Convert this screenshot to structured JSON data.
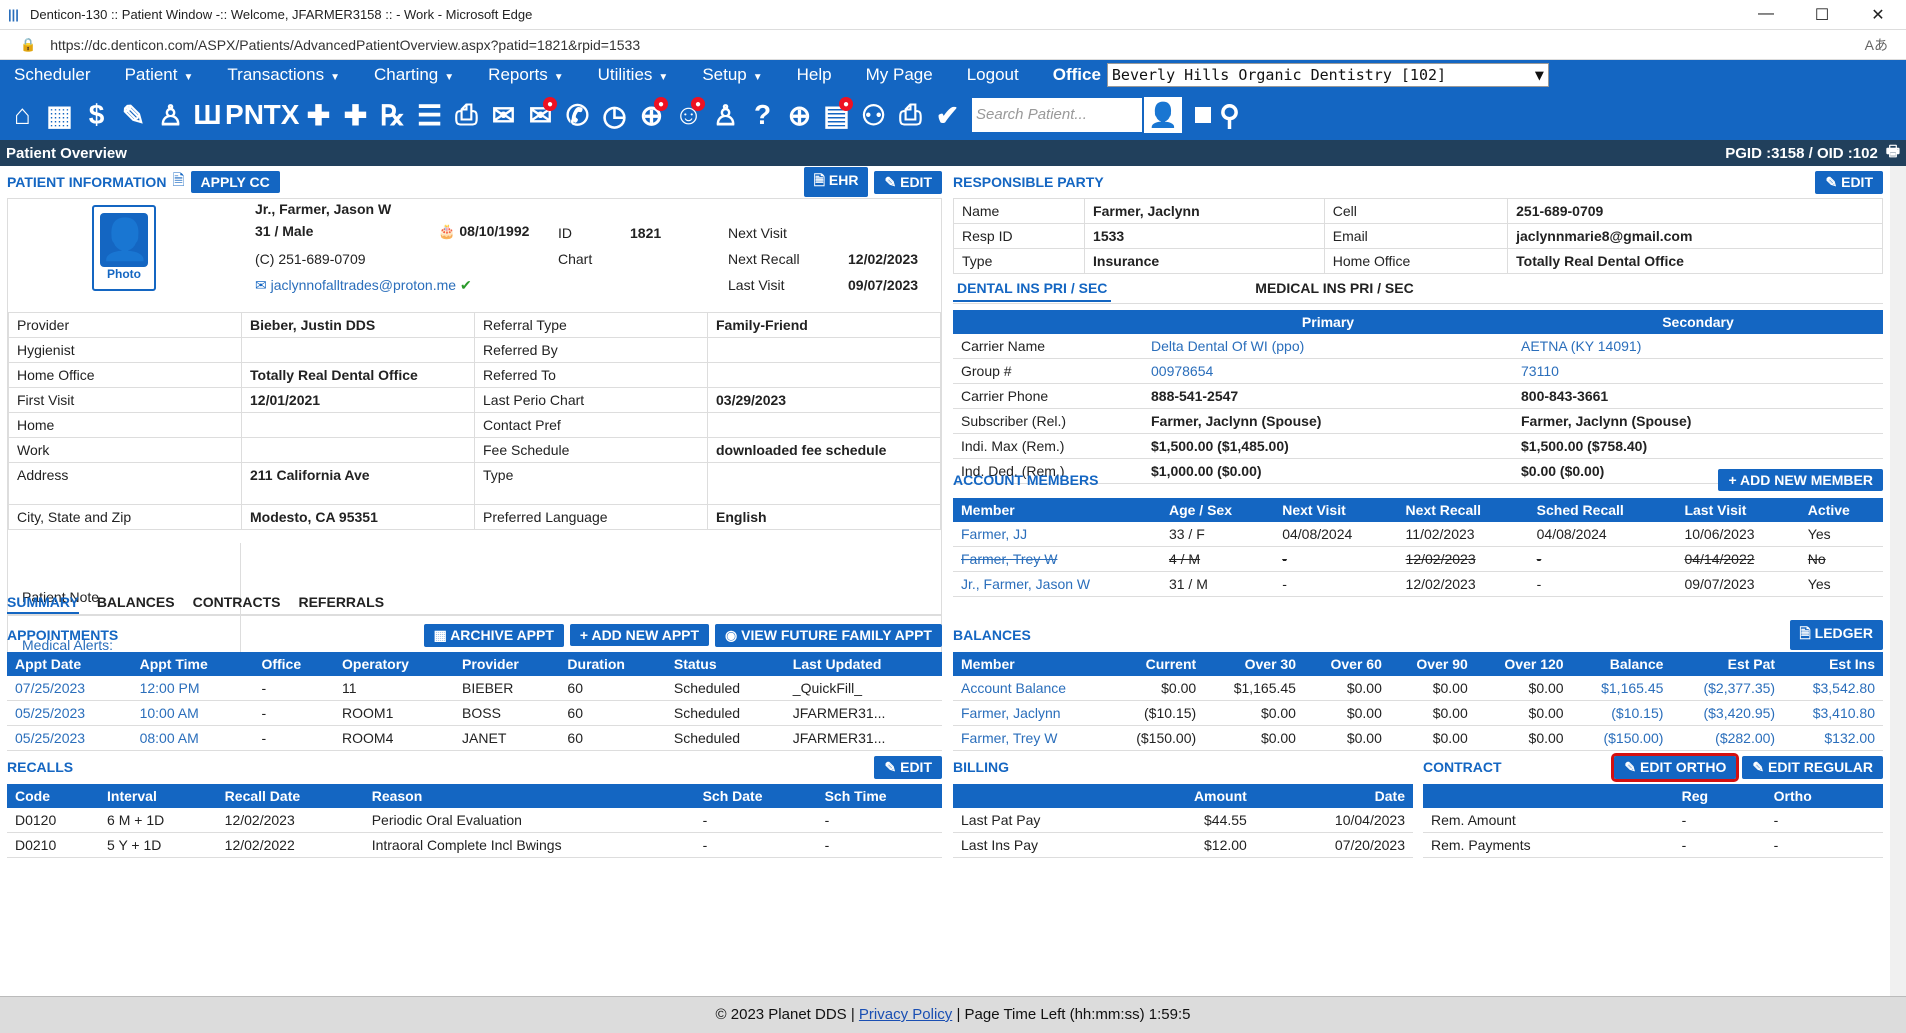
{
  "window": {
    "title": "Denticon-130 :: Patient Window -:: Welcome, JFARMER3158 :: - Work - Microsoft Edge",
    "url": "https://dc.denticon.com/ASPX/Patients/AdvancedPatientOverview.aspx?patid=1821&rpid=1533"
  },
  "menu": {
    "items": [
      "Scheduler",
      "Patient",
      "Transactions",
      "Charting",
      "Reports",
      "Utilities",
      "Setup",
      "Help",
      "My Page",
      "Logout"
    ],
    "office_label": "Office",
    "office_value": "Beverly Hills Organic Dentistry [102]"
  },
  "iconbar": {
    "search_placeholder": "Search Patient..."
  },
  "overview": {
    "title": "Patient Overview",
    "ids": "PGID :3158 / OID :102"
  },
  "patient": {
    "section": "PATIENT INFORMATION",
    "apply_cc": "APPLY CC",
    "ehr": "EHR",
    "edit": "EDIT",
    "photo": "Photo",
    "name": "Jr., Farmer, Jason W",
    "agesex": "31 / Male",
    "dob": "08/10/1992",
    "id_label": "ID",
    "id": "1821",
    "chart_label": "Chart",
    "phone": "(C) 251-689-0709",
    "email": "jaclynnofalltrades@proton.me",
    "next_visit_label": "Next Visit",
    "next_recall_label": "Next Recall",
    "next_recall": "12/02/2023",
    "last_visit_label": "Last Visit",
    "last_visit": "09/07/2023",
    "rows": [
      [
        "Provider",
        "Bieber, Justin DDS",
        "Referral Type",
        "Family-Friend"
      ],
      [
        "Hygienist",
        "",
        "Referred By",
        ""
      ],
      [
        "Home Office",
        "Totally Real Dental Office",
        "Referred To",
        ""
      ],
      [
        "First Visit",
        "12/01/2021",
        "Last Perio Chart",
        "03/29/2023"
      ],
      [
        "Home",
        "",
        "Contact Pref",
        ""
      ],
      [
        "Work",
        "",
        "Fee Schedule",
        "downloaded fee schedule"
      ],
      [
        "Address",
        "211 California Ave",
        "Type",
        ""
      ],
      [
        "City, State and Zip",
        "Modesto, CA 95351",
        "Preferred Language",
        "English"
      ]
    ],
    "note_label": "Patient Note",
    "alerts_label": "Medical Alerts:"
  },
  "responsible": {
    "section": "RESPONSIBLE PARTY",
    "edit": "EDIT",
    "rows": [
      [
        "Name",
        "Farmer, Jaclynn",
        "Cell",
        "251-689-0709"
      ],
      [
        "Resp ID",
        "1533",
        "Email",
        "jaclynnmarie8@gmail.com"
      ],
      [
        "Type",
        "Insurance",
        "Home Office",
        "Totally Real Dental Office"
      ]
    ]
  },
  "insurance": {
    "tab_dental": "DENTAL INS PRI / SEC",
    "tab_medical": "MEDICAL INS PRI / SEC",
    "primary": "Primary",
    "secondary": "Secondary",
    "rows": [
      [
        "Carrier Name",
        "Delta Dental Of WI (ppo)",
        "AETNA (KY 14091)"
      ],
      [
        "Group #",
        "00978654",
        "73110"
      ],
      [
        "Carrier Phone",
        "888-541-2547",
        "800-843-3661"
      ],
      [
        "Subscriber (Rel.)",
        "Farmer, Jaclynn (Spouse)",
        "Farmer, Jaclynn (Spouse)"
      ],
      [
        "Indi. Max (Rem.)",
        "$1,500.00 ($1,485.00)",
        "$1,500.00 ($758.40)"
      ],
      [
        "Ind. Ded. (Rem.)",
        "$1,000.00 ($0.00)",
        "$0.00 ($0.00)"
      ]
    ]
  },
  "members": {
    "section": "ACCOUNT MEMBERS",
    "add": "+ ADD NEW MEMBER",
    "headers": [
      "Member",
      "Age / Sex",
      "Next Visit",
      "Next Recall",
      "Sched Recall",
      "Last Visit",
      "Active"
    ],
    "rows": [
      [
        "Farmer, JJ",
        "33 / F",
        "04/08/2024",
        "11/02/2023",
        "04/08/2024",
        "10/06/2023",
        "Yes"
      ],
      [
        "Farmer, Trey W",
        "4 / M",
        "-",
        "12/02/2023",
        "-",
        "04/14/2022",
        "No"
      ],
      [
        "Jr., Farmer, Jason W",
        "31 / M",
        "-",
        "12/02/2023",
        "-",
        "09/07/2023",
        "Yes"
      ]
    ]
  },
  "tabs": [
    "SUMMARY",
    "BALANCES",
    "CONTRACTS",
    "REFERRALS"
  ],
  "appointments": {
    "section": "APPOINTMENTS",
    "archive": "ARCHIVE APPT",
    "add": "+ ADD NEW APPT",
    "future": "VIEW FUTURE FAMILY APPT",
    "headers": [
      "Appt Date",
      "Appt Time",
      "Office",
      "Operatory",
      "Provider",
      "Duration",
      "Status",
      "Last Updated"
    ],
    "rows": [
      [
        "07/25/2023",
        "12:00 PM",
        "-",
        "11",
        "BIEBER",
        "60",
        "Scheduled",
        "_QuickFill_"
      ],
      [
        "05/25/2023",
        "10:00 AM",
        "-",
        "ROOM1",
        "BOSS",
        "60",
        "Scheduled",
        "JFARMER31..."
      ],
      [
        "05/25/2023",
        "08:00 AM",
        "-",
        "ROOM4",
        "JANET",
        "60",
        "Scheduled",
        "JFARMER31..."
      ]
    ]
  },
  "balances": {
    "section": "BALANCES",
    "ledger": "LEDGER",
    "headers": [
      "Member",
      "Current",
      "Over 30",
      "Over 60",
      "Over 90",
      "Over 120",
      "Balance",
      "Est Pat",
      "Est Ins"
    ],
    "rows": [
      [
        "Account Balance",
        "$0.00",
        "$1,165.45",
        "$0.00",
        "$0.00",
        "$0.00",
        "$1,165.45",
        "($2,377.35)",
        "$3,542.80"
      ],
      [
        "Farmer, Jaclynn",
        "($10.15)",
        "$0.00",
        "$0.00",
        "$0.00",
        "$0.00",
        "($10.15)",
        "($3,420.95)",
        "$3,410.80"
      ],
      [
        "Farmer, Trey W",
        "($150.00)",
        "$0.00",
        "$0.00",
        "$0.00",
        "$0.00",
        "($150.00)",
        "($282.00)",
        "$132.00"
      ]
    ]
  },
  "recalls": {
    "section": "RECALLS",
    "edit": "EDIT",
    "headers": [
      "Code",
      "Interval",
      "Recall Date",
      "Reason",
      "Sch Date",
      "Sch Time"
    ],
    "rows": [
      [
        "D0120",
        "6 M + 1D",
        "12/02/2023",
        "Periodic Oral Evaluation",
        "-",
        "-"
      ],
      [
        "D0210",
        "5 Y + 1D",
        "12/02/2022",
        "Intraoral Complete Incl Bwings",
        "-",
        "-"
      ]
    ]
  },
  "billing": {
    "section": "BILLING",
    "headers": [
      "",
      "Amount",
      "Date"
    ],
    "rows": [
      [
        "Last Pat Pay",
        "$44.55",
        "10/04/2023"
      ],
      [
        "Last Ins Pay",
        "$12.00",
        "07/20/2023"
      ]
    ]
  },
  "contract": {
    "section": "CONTRACT",
    "edit_ortho": "EDIT ORTHO",
    "edit_regular": "EDIT REGULAR",
    "headers": [
      "",
      "Reg",
      "Ortho"
    ],
    "rows": [
      [
        "Rem. Amount",
        "-",
        "-"
      ],
      [
        "Rem. Payments",
        "-",
        "-"
      ]
    ]
  },
  "footer": {
    "copyright": "© 2023 Planet DDS |",
    "privacy": "Privacy Policy",
    "time": "| Page Time Left (hh:mm:ss) 1:59:5"
  },
  "colors": {
    "primary": "#1466c2",
    "header": "#21405c",
    "highlight": "#d41010"
  }
}
